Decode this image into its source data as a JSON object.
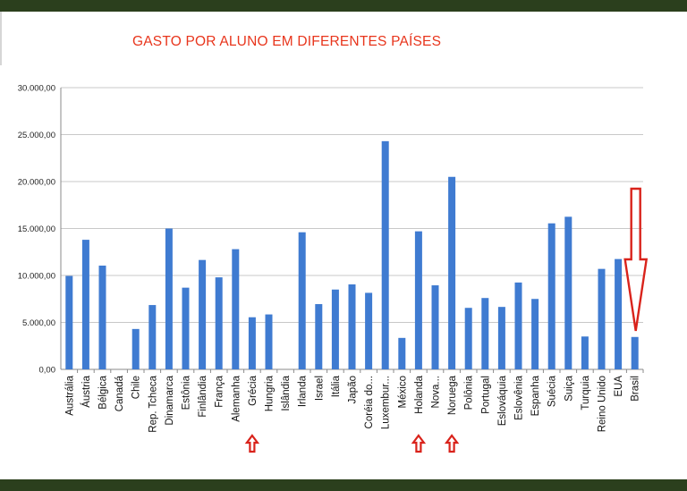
{
  "chart_data": {
    "type": "bar",
    "title": "GASTO POR ALUNO EM DIFERENTES PAÍSES",
    "xlabel": "",
    "ylabel": "",
    "ylim": [
      0,
      30000
    ],
    "yticks": [
      0,
      5000,
      10000,
      15000,
      20000,
      25000,
      30000
    ],
    "ytick_labels": [
      "0,00",
      "5.000,00",
      "10.000,00",
      "15.000,00",
      "20.000,00",
      "25.000,00",
      "30.000,00"
    ],
    "grid": true,
    "legend": "none",
    "bar_color": "#3f7bd1",
    "categories": [
      "Austrália",
      "Áustria",
      "Bélgica",
      "Canadá",
      "Chile",
      "Rep. Tcheca",
      "Dinamarca",
      "Estônia",
      "Finlândia",
      "França",
      "Alemanha",
      "Grécia",
      "Hungria",
      "Islândia",
      "Irlanda",
      "Israel",
      "Itália",
      "Japão",
      "Coréia do...",
      "Luxembur...",
      "México",
      "Holanda",
      "Nova...",
      "Noruega",
      "Polônia",
      "Portugal",
      "Eslováquia",
      "Eslovênia",
      "Espanha",
      "Suécia",
      "Suiça",
      "Turquia",
      "Reino Unido",
      "EUA",
      "Brasil"
    ],
    "values": [
      9950,
      13800,
      11050,
      0,
      4300,
      6850,
      15000,
      8700,
      11650,
      9800,
      12800,
      5550,
      5850,
      0,
      14600,
      6950,
      8500,
      9050,
      8150,
      24300,
      3350,
      14700,
      8950,
      20500,
      6550,
      7600,
      6650,
      9250,
      7500,
      15550,
      16250,
      3500,
      10700,
      11750,
      3450
    ],
    "annotations": {
      "arrow_color": "#d9231b",
      "highlighted": [
        "Grécia",
        "Holanda",
        "Noruega",
        "Brasil"
      ]
    }
  }
}
